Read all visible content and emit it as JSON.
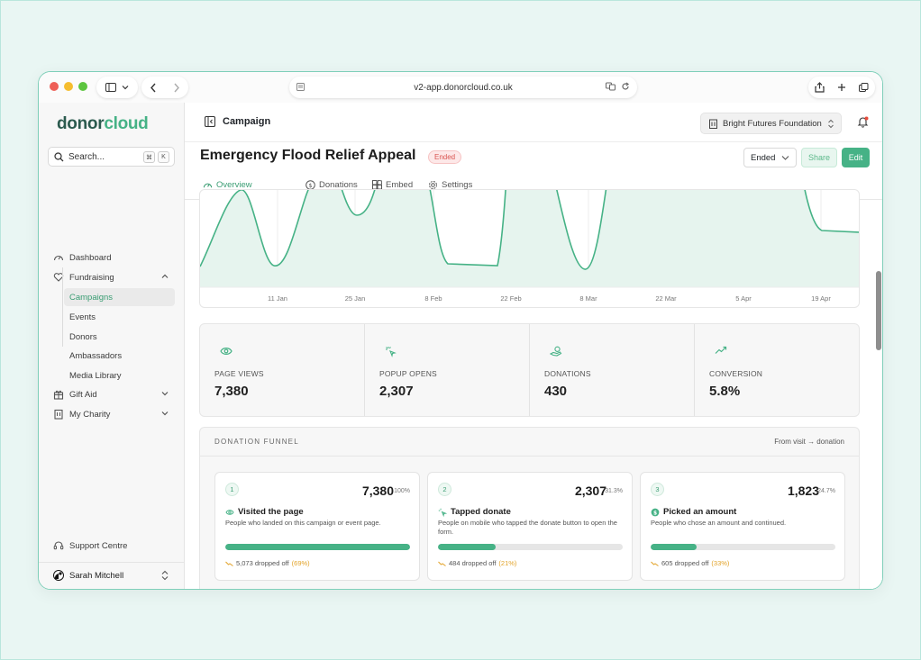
{
  "browser": {
    "url": "v2-app.donorcloud.co.uk"
  },
  "sidebar": {
    "logo": {
      "part1": "donor",
      "part2": "cloud"
    },
    "search_label": "Search...",
    "search_kbd": [
      "⌘",
      "K"
    ],
    "items": [
      {
        "label": "Dashboard",
        "icon": "gauge-icon"
      },
      {
        "label": "Fundraising",
        "icon": "heart-hand-icon",
        "expanded": true
      },
      {
        "label": "Gift Aid",
        "icon": "gift-icon"
      },
      {
        "label": "My Charity",
        "icon": "building-icon"
      }
    ],
    "fundraising_sub": [
      {
        "label": "Campaigns",
        "active": true
      },
      {
        "label": "Events"
      },
      {
        "label": "Donors"
      },
      {
        "label": "Ambassadors"
      },
      {
        "label": "Media Library"
      }
    ],
    "support_label": "Support Centre",
    "user_name": "Sarah Mitchell"
  },
  "topbar": {
    "title": "Campaign",
    "org": "Bright Futures Foundation"
  },
  "campaign": {
    "title": "Emergency Flood Relief Appeal",
    "badge": "Ended",
    "status_value": "Ended",
    "share_label": "Share",
    "edit_label": "Edit",
    "tabs": [
      "Overview",
      "Donations",
      "Embed",
      "Settings"
    ]
  },
  "colors": {
    "accent": "#46b286",
    "accent_dark": "#2c5b4f",
    "badge_red": "#d9534f",
    "drop_orange": "#e2a227"
  },
  "chart_data": {
    "type": "area",
    "x_tick_labels": [
      "11 Jan",
      "25 Jan",
      "8 Feb",
      "22 Feb",
      "8 Mar",
      "22 Mar",
      "5 Apr",
      "19 Apr"
    ],
    "grid": true,
    "legend": "none"
  },
  "stats": [
    {
      "label": "PAGE VIEWS",
      "value": "7,380",
      "icon": "eye-icon"
    },
    {
      "label": "POPUP OPENS",
      "value": "2,307",
      "icon": "sparkle-click-icon"
    },
    {
      "label": "DONATIONS",
      "value": "430",
      "icon": "hand-coin-icon"
    },
    {
      "label": "CONVERSION",
      "value": "5.8%",
      "icon": "trend-up-icon"
    }
  ],
  "funnel": {
    "title": "DONATION FUNNEL",
    "subtitle": "From visit → donation",
    "steps": [
      {
        "num": "1",
        "count": "7,380",
        "pct": "100%",
        "name": "Visited the page",
        "icon": "eye-icon",
        "desc": "People who landed on this campaign or event page.",
        "fill": 1.0,
        "dropped": "5,073 dropped off",
        "dropped_pct": "(69%)"
      },
      {
        "num": "2",
        "count": "2,307",
        "pct": "31.3%",
        "name": "Tapped donate",
        "icon": "tap-icon",
        "desc": "People on mobile who tapped the donate button to open the form.",
        "fill": 0.313,
        "dropped": "484 dropped off",
        "dropped_pct": "(21%)"
      },
      {
        "num": "3",
        "count": "1,823",
        "pct": "24.7%",
        "name": "Picked an amount",
        "icon": "coin-icon",
        "desc": "People who chose an amount and continued.",
        "fill": 0.247,
        "dropped": "605 dropped off",
        "dropped_pct": "(33%)"
      }
    ]
  }
}
